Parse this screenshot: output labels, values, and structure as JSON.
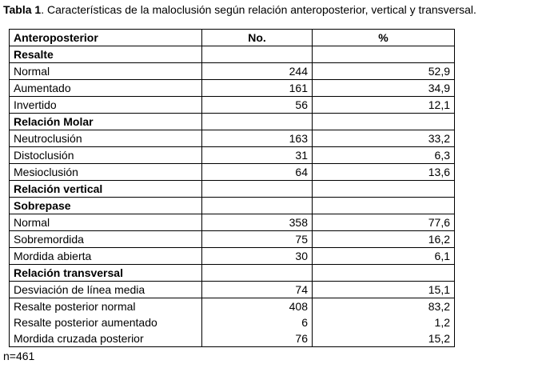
{
  "caption": {
    "label": "Tabla 1",
    "text": ". Características de la maloclusión según relación anteroposterior, vertical y transversal."
  },
  "table": {
    "headers": [
      "Anteroposterior",
      "No.",
      "%"
    ],
    "rows": [
      {
        "type": "section",
        "label": "Resalte"
      },
      {
        "type": "data",
        "label": "Normal",
        "no": "244",
        "pct": "52,9"
      },
      {
        "type": "data",
        "label": "Aumentado",
        "no": "161",
        "pct": "34,9"
      },
      {
        "type": "data",
        "label": "Invertido",
        "no": "56",
        "pct": "12,1"
      },
      {
        "type": "section",
        "label": "Relación Molar"
      },
      {
        "type": "data",
        "label": "Neutroclusión",
        "no": "163",
        "pct": "33,2"
      },
      {
        "type": "data",
        "label": "Distoclusión",
        "no": "31",
        "pct": "6,3"
      },
      {
        "type": "data",
        "label": "Mesioclusión",
        "no": "64",
        "pct": "13,6"
      },
      {
        "type": "section",
        "label": "Relación vertical"
      },
      {
        "type": "section",
        "label": "Sobrepase"
      },
      {
        "type": "data",
        "label": "Normal",
        "no": "358",
        "pct": "77,6"
      },
      {
        "type": "data",
        "label": "Sobremordida",
        "no": "75",
        "pct": "16,2"
      },
      {
        "type": "data",
        "label": "Mordida abierta",
        "no": "30",
        "pct": "6,1"
      },
      {
        "type": "section",
        "label": "Relación transversal"
      },
      {
        "type": "data",
        "label": "Desviación de línea media",
        "no": "74",
        "pct": "15,1"
      },
      {
        "type": "data",
        "label": "Resalte posterior normal",
        "no": "408",
        "pct": "83,2",
        "merge": "top"
      },
      {
        "type": "data",
        "label": "Resalte posterior aumentado",
        "no": "6",
        "pct": "1,2",
        "merge": "both"
      },
      {
        "type": "data",
        "label": "Mordida cruzada posterior",
        "no": "76",
        "pct": "15,2",
        "merge": "bottom"
      }
    ]
  },
  "footnote": "n=461"
}
